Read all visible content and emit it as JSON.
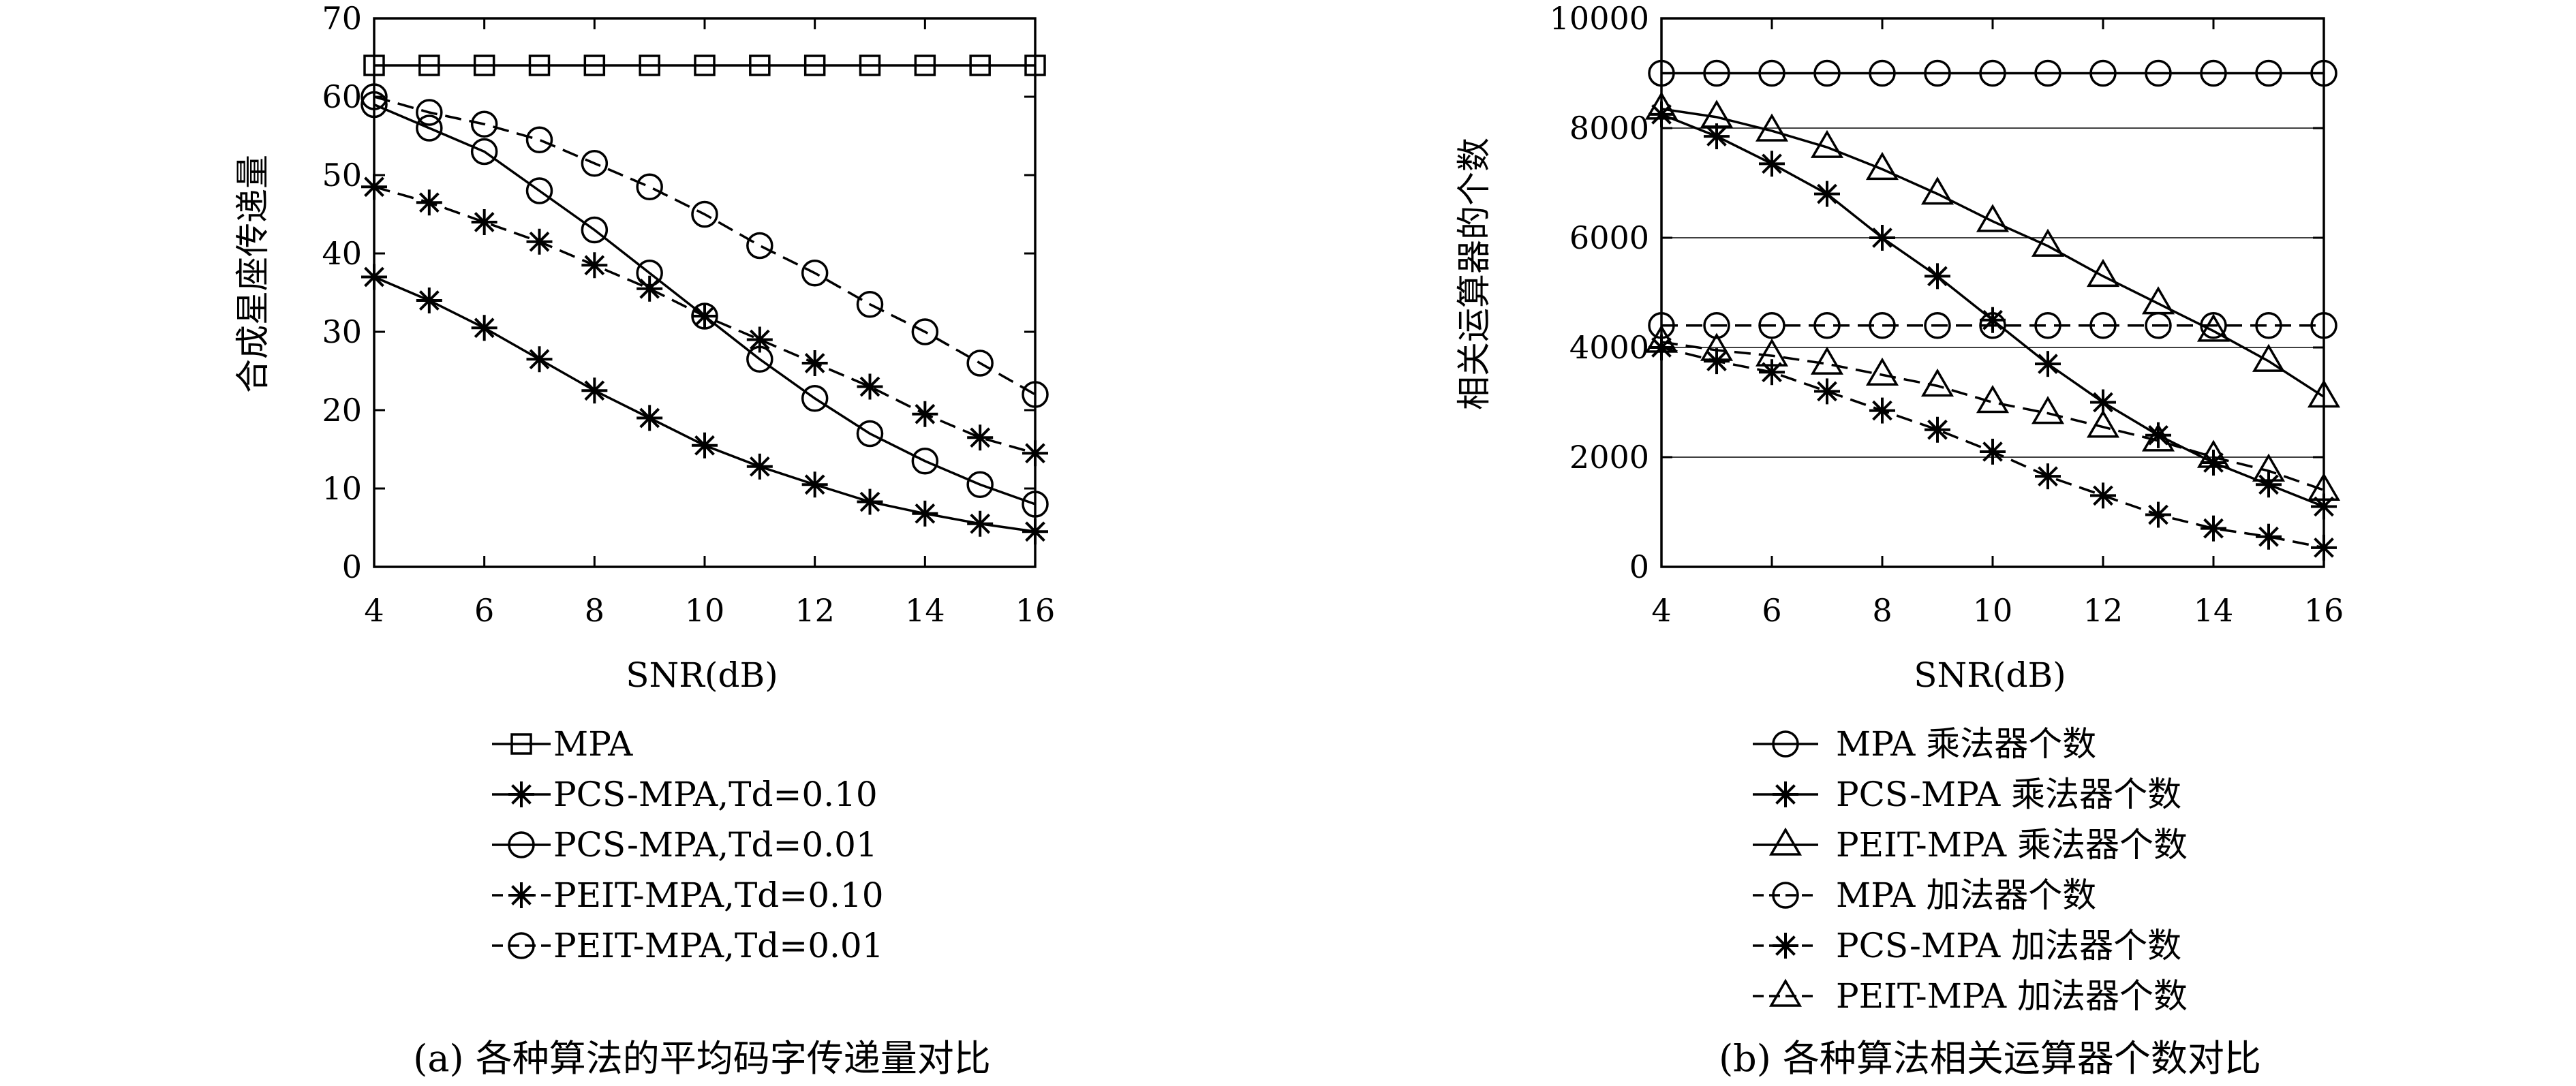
{
  "chart_data": [
    {
      "type": "line",
      "caption": "(a) 各种算法的平均码字传递量对比",
      "xlabel": "SNR(dB)",
      "ylabel": "合成星座传递量",
      "x": [
        4,
        5,
        6,
        7,
        8,
        9,
        10,
        11,
        12,
        13,
        14,
        15,
        16
      ],
      "xticks": [
        4,
        6,
        8,
        10,
        12,
        14,
        16
      ],
      "yticks": [
        0,
        10,
        20,
        30,
        40,
        50,
        60,
        70
      ],
      "xlim": [
        4,
        16
      ],
      "ylim": [
        0,
        70
      ],
      "grid": false,
      "legend_position": "below",
      "series": [
        {
          "name": "MPA",
          "marker": "square",
          "dash": "solid",
          "values": [
            64,
            64,
            64,
            64,
            64,
            64,
            64,
            64,
            64,
            64,
            64,
            64,
            64
          ]
        },
        {
          "name": "PCS-MPA,Td=0.10",
          "marker": "asterisk",
          "dash": "solid",
          "values": [
            37,
            34,
            30.5,
            26.5,
            22.5,
            19,
            15.5,
            12.8,
            10.5,
            8.3,
            6.8,
            5.5,
            4.5
          ]
        },
        {
          "name": "PCS-MPA,Td=0.01",
          "marker": "circle",
          "dash": "solid",
          "values": [
            59,
            56,
            53,
            48,
            43,
            37.5,
            32,
            26.5,
            21.5,
            17,
            13.5,
            10.5,
            8
          ]
        },
        {
          "name": "PEIT-MPA,Td=0.10",
          "marker": "asterisk",
          "dash": "dashed",
          "values": [
            48.5,
            46.5,
            44,
            41.5,
            38.5,
            35.5,
            32,
            29,
            26,
            23,
            19.5,
            16.5,
            14.5
          ]
        },
        {
          "name": "PEIT-MPA,Td=0.01",
          "marker": "circle",
          "dash": "dashed",
          "values": [
            60,
            58,
            56.5,
            54.5,
            51.5,
            48.5,
            45,
            41,
            37.5,
            33.5,
            30,
            26,
            22
          ]
        }
      ]
    },
    {
      "type": "line",
      "caption": "(b) 各种算法相关运算器个数对比",
      "xlabel": "SNR(dB)",
      "ylabel": "相关运算器的个数",
      "x": [
        4,
        5,
        6,
        7,
        8,
        9,
        10,
        11,
        12,
        13,
        14,
        15,
        16
      ],
      "xticks": [
        4,
        6,
        8,
        10,
        12,
        14,
        16
      ],
      "yticks": [
        0,
        2000,
        4000,
        6000,
        8000,
        10000
      ],
      "xlim": [
        4,
        16
      ],
      "ylim": [
        0,
        10000
      ],
      "grid": true,
      "legend_position": "below",
      "series": [
        {
          "name": "MPA 乘法器个数",
          "marker": "circle",
          "dash": "solid",
          "values": [
            9000,
            9000,
            9000,
            9000,
            9000,
            9000,
            9000,
            9000,
            9000,
            9000,
            9000,
            9000,
            9000
          ]
        },
        {
          "name": "PCS-MPA 乘法器个数",
          "marker": "asterisk",
          "dash": "solid",
          "values": [
            8250,
            7850,
            7350,
            6800,
            6000,
            5300,
            4500,
            3700,
            3000,
            2400,
            1900,
            1500,
            1100
          ]
        },
        {
          "name": "PEIT-MPA 乘法器个数",
          "marker": "triangle",
          "dash": "solid",
          "values": [
            8350,
            8200,
            7950,
            7650,
            7250,
            6800,
            6300,
            5850,
            5300,
            4800,
            4300,
            3750,
            3100
          ]
        },
        {
          "name": "MPA 加法器个数",
          "marker": "circle",
          "dash": "dashed",
          "values": [
            4400,
            4400,
            4400,
            4400,
            4400,
            4400,
            4400,
            4400,
            4400,
            4400,
            4400,
            4400,
            4400
          ]
        },
        {
          "name": "PCS-MPA 加法器个数",
          "marker": "asterisk",
          "dash": "dashed",
          "values": [
            4000,
            3750,
            3550,
            3200,
            2850,
            2500,
            2100,
            1650,
            1300,
            950,
            700,
            550,
            350
          ]
        },
        {
          "name": "PEIT-MPA 加法器个数",
          "marker": "triangle",
          "dash": "dashed",
          "values": [
            4100,
            3950,
            3850,
            3700,
            3500,
            3300,
            3000,
            2800,
            2550,
            2300,
            2000,
            1750,
            1400
          ]
        }
      ]
    }
  ]
}
